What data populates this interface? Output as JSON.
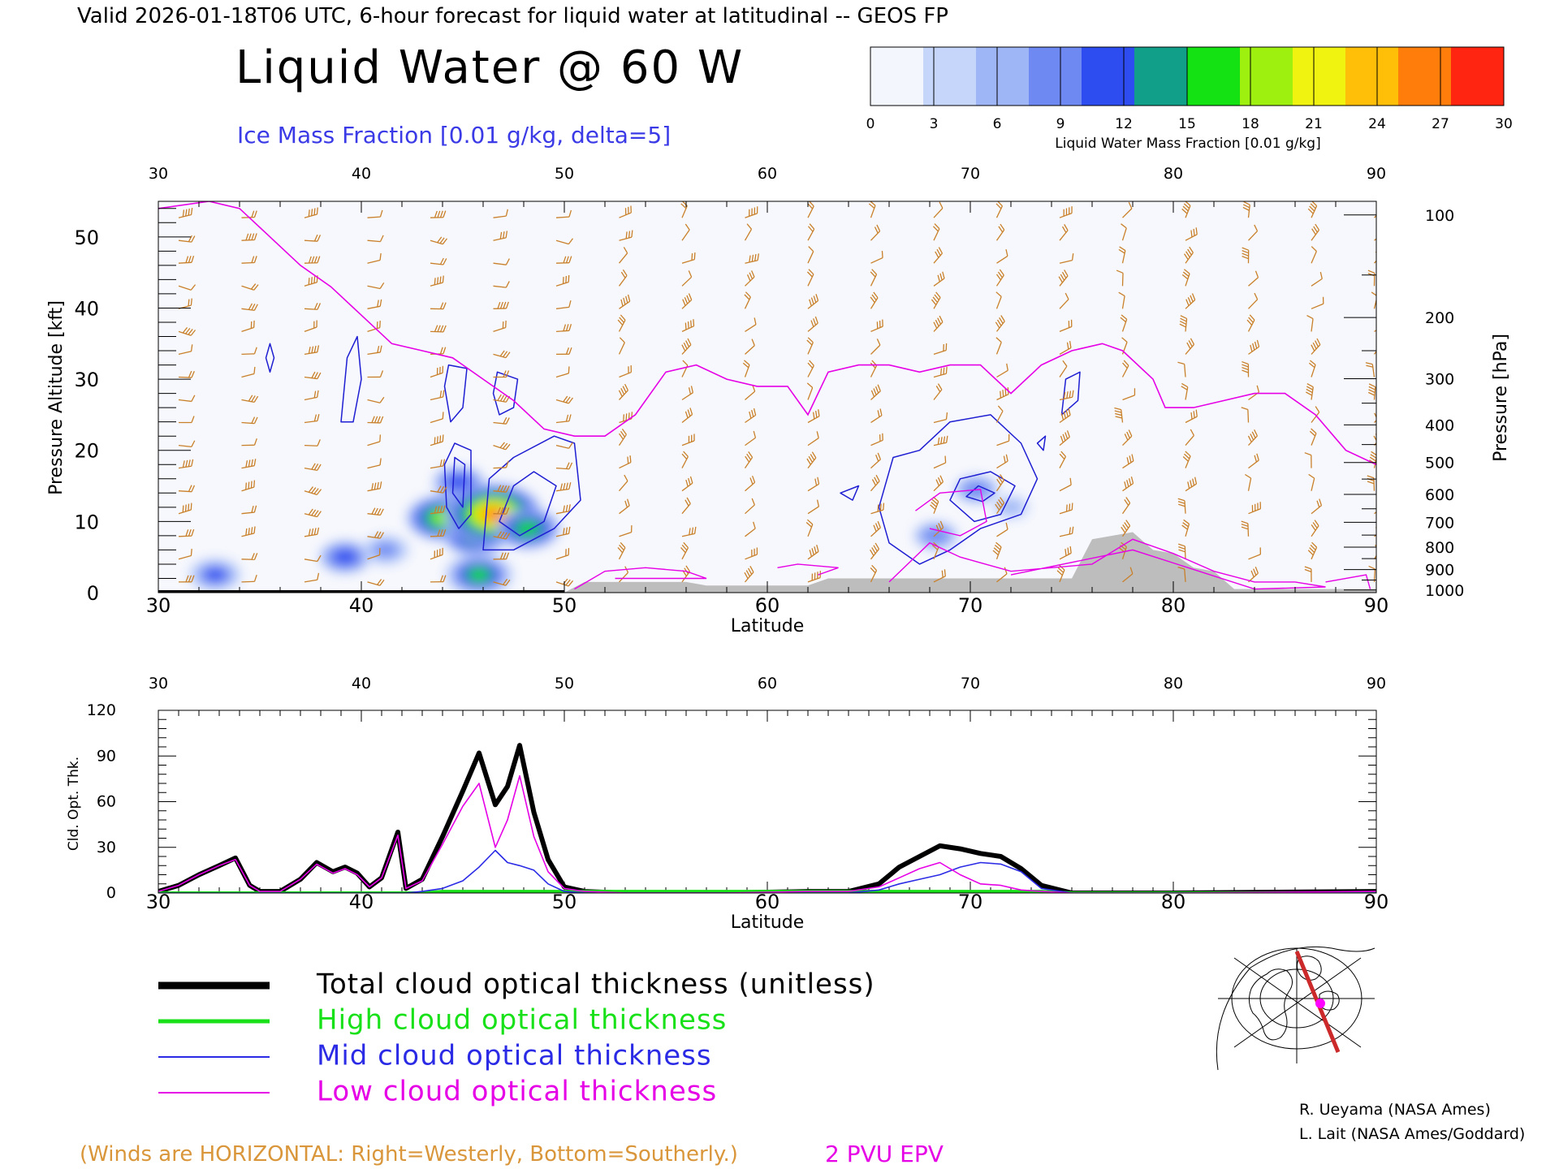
{
  "header": "Valid 2026-01-18T06 UTC, 6-hour forecast for liquid water at latitudinal -- GEOS FP",
  "title": "Liquid Water @ 60 W",
  "subtitle": "Ice Mass Fraction [0.01 g/kg, delta=5]",
  "colorbar": {
    "label": "Liquid Water Mass Fraction [0.01 g/kg]",
    "ticks": [
      "0",
      "3",
      "6",
      "9",
      "12",
      "15",
      "18",
      "21",
      "24",
      "27",
      "30"
    ],
    "colors": [
      "#f4f6fe",
      "#c6d6fb",
      "#9fb6f6",
      "#6f89f2",
      "#2d4df0",
      "#119f8a",
      "#15e212",
      "#9ef00e",
      "#f0f20f",
      "#ffbe08",
      "#ff7d0a",
      "#ff2510"
    ]
  },
  "top_panel": {
    "ylabel_left": "Pressure Altitude [kft]",
    "ylabel_right": "Pressure [hPa]",
    "xlabel": "Latitude",
    "x_ticks": [
      "30",
      "40",
      "50",
      "60",
      "70",
      "80",
      "90"
    ],
    "y_ticks": [
      "0",
      "10",
      "20",
      "30",
      "40",
      "50"
    ],
    "p_ticks": [
      "100",
      "200",
      "300",
      "400",
      "500",
      "600",
      "700",
      "800",
      "900",
      "1000"
    ]
  },
  "bottom_panel": {
    "ylabel": "Cld. Opt. Thk.",
    "xlabel": "Latitude",
    "x_ticks": [
      "30",
      "40",
      "50",
      "60",
      "70",
      "80",
      "90"
    ],
    "y_ticks": [
      "0",
      "30",
      "60",
      "90",
      "120"
    ]
  },
  "legend": [
    {
      "label": "Total cloud optical thickness (unitless)",
      "color": "#000000"
    },
    {
      "label": "High cloud optical thickness",
      "color": "#19e119"
    },
    {
      "label": "Mid cloud optical thickness",
      "color": "#2b2be6"
    },
    {
      "label": "Low cloud optical thickness",
      "color": "#e600e6"
    }
  ],
  "credits": [
    "R. Ueyama (NASA Ames)",
    "L. Lait (NASA Ames/Goddard)"
  ],
  "winds_note": "(Winds are HORIZONTAL: Right=Westerly, Bottom=Southerly.)",
  "pvu_label": "2 PVU EPV",
  "chart_data": [
    {
      "type": "heatmap",
      "description_of_fields": "latitude-altitude cross section at 60 W",
      "x_range": [
        30,
        90
      ],
      "y_range_kft": [
        0,
        55
      ],
      "liquid_water_blobs": [
        {
          "lat": 32.8,
          "alt": 2.5,
          "peak": 10
        },
        {
          "lat": 39.2,
          "alt": 5.0,
          "peak": 9
        },
        {
          "lat": 41.2,
          "alt": 6.0,
          "peak": 8
        },
        {
          "lat": 44.0,
          "alt": 10.5,
          "peak": 17
        },
        {
          "lat": 44.8,
          "alt": 15.5,
          "peak": 9
        },
        {
          "lat": 45.6,
          "alt": 8.0,
          "peak": 14
        },
        {
          "lat": 46.5,
          "alt": 11.0,
          "peak": 27
        },
        {
          "lat": 48.2,
          "alt": 9.0,
          "peak": 14
        },
        {
          "lat": 45.8,
          "alt": 2.5,
          "peak": 16
        },
        {
          "lat": 68.3,
          "alt": 8.0,
          "peak": 6
        },
        {
          "lat": 70.3,
          "alt": 14.5,
          "peak": 6
        },
        {
          "lat": 72.0,
          "alt": 12.0,
          "peak": 4
        }
      ],
      "pvu2_lat": [
        30,
        32.5,
        34,
        35.5,
        37,
        38.5,
        40,
        41.5,
        43,
        44.5,
        46,
        47.5,
        49,
        50.5,
        52,
        53.5,
        55,
        56.5,
        58,
        59.5,
        61,
        62,
        63,
        64.5,
        66,
        67.5,
        69,
        70.5,
        72,
        73.5,
        75,
        76.5,
        77.5,
        79,
        79.6,
        81,
        82.5,
        84,
        85.5,
        87,
        88.5,
        90
      ],
      "pvu2_alt_kft": [
        54,
        55,
        54,
        50,
        46,
        43,
        39,
        35,
        34,
        33,
        30,
        27,
        23,
        22,
        22,
        25,
        31,
        32,
        30,
        29,
        29,
        25,
        31,
        32,
        32,
        31,
        32,
        32,
        28,
        32,
        34,
        35,
        34,
        30,
        26,
        26,
        27,
        28,
        28,
        25,
        20,
        18
      ],
      "terrain_lat": [
        30,
        50,
        51,
        56,
        57,
        62,
        63,
        75,
        76,
        78,
        79,
        80,
        81,
        82,
        83,
        90
      ],
      "terrain_alt_kft": [
        0,
        0,
        1.5,
        1.5,
        1.0,
        1.0,
        2.0,
        2.0,
        7.5,
        8.5,
        6.0,
        5.5,
        3.5,
        3.0,
        0.5,
        0.5
      ]
    },
    {
      "type": "line",
      "x_range": [
        30,
        90
      ],
      "ylim": [
        0,
        120
      ],
      "x": [
        30,
        31,
        32,
        33,
        33.8,
        34.5,
        35,
        36,
        37,
        37.8,
        38.6,
        39.2,
        39.8,
        40.4,
        41,
        41.8,
        42.2,
        43,
        44,
        45,
        45.8,
        46.6,
        47.2,
        47.8,
        48.5,
        49.2,
        50,
        51,
        53,
        58,
        62,
        64,
        65.5,
        66.5,
        67.5,
        68.5,
        69.5,
        70.5,
        71.5,
        72.5,
        73.5,
        75,
        80,
        90
      ],
      "series": [
        {
          "name": "Total cloud optical thickness (unitless)",
          "values": [
            1,
            5,
            12,
            18,
            23,
            5,
            1,
            1,
            9,
            20,
            14,
            17,
            13,
            4,
            10,
            40,
            3,
            9,
            37,
            67,
            92,
            58,
            70,
            97,
            53,
            22,
            4,
            1,
            0,
            0,
            1,
            1,
            6,
            17,
            24,
            31,
            29,
            26,
            24,
            16,
            5,
            0,
            0,
            1
          ]
        },
        {
          "name": "High cloud optical thickness",
          "values": [
            0,
            0,
            0,
            0,
            0,
            0,
            0,
            0,
            0,
            0,
            0,
            0,
            0,
            0,
            0,
            0,
            0,
            0,
            1,
            1,
            1,
            1,
            1,
            1,
            1,
            1,
            1,
            1,
            1,
            1,
            1,
            1,
            1,
            1,
            1,
            1,
            1,
            1,
            1,
            1,
            1,
            0,
            0,
            0
          ]
        },
        {
          "name": "Mid cloud optical thickness",
          "values": [
            0,
            0,
            0,
            0,
            0,
            0,
            0,
            0,
            0,
            0,
            0,
            0,
            0,
            0,
            0,
            0,
            0,
            1,
            3,
            8,
            17,
            28,
            20,
            18,
            15,
            6,
            1,
            0,
            0,
            0,
            0,
            0,
            2,
            6,
            9,
            12,
            17,
            20,
            19,
            14,
            3,
            0,
            0,
            0
          ]
        },
        {
          "name": "Low cloud optical thickness",
          "values": [
            1,
            5,
            12,
            18,
            22,
            5,
            1,
            1,
            9,
            19,
            13,
            16,
            12,
            4,
            10,
            38,
            3,
            8,
            32,
            57,
            72,
            30,
            48,
            77,
            37,
            14,
            3,
            1,
            0,
            0,
            1,
            1,
            4,
            10,
            16,
            20,
            12,
            6,
            5,
            2,
            1,
            0,
            0,
            1
          ]
        }
      ]
    }
  ]
}
